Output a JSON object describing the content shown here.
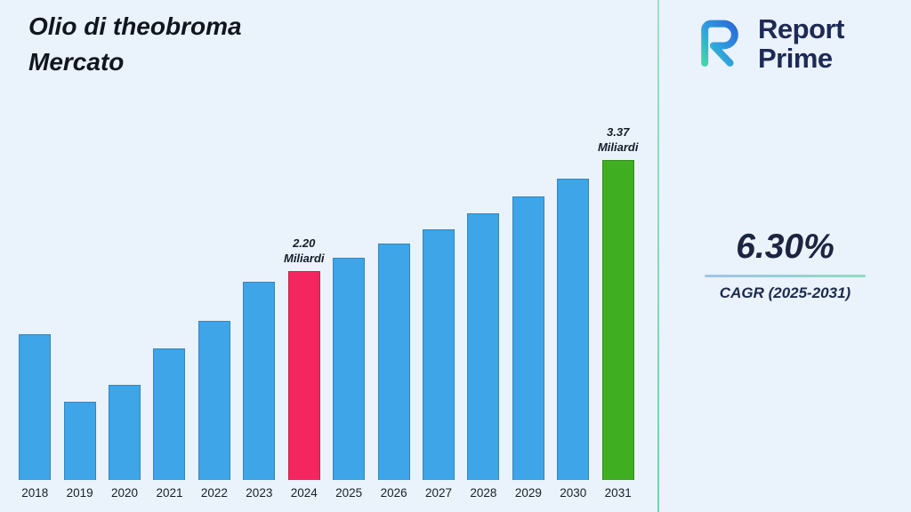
{
  "title": {
    "line1": "Olio di theobroma",
    "line2": "Mercato"
  },
  "logo": {
    "name": "Report Prime",
    "line1": "Report",
    "line2": "Prime"
  },
  "stats": {
    "cagr_value": "6.30%",
    "cagr_label": "CAGR (2025-2031)"
  },
  "chart_data": {
    "type": "bar",
    "title": "Olio di theobroma Mercato",
    "unit": "Miliardi",
    "categories": [
      "2018",
      "2019",
      "2020",
      "2021",
      "2022",
      "2023",
      "2024",
      "2025",
      "2026",
      "2027",
      "2028",
      "2029",
      "2030",
      "2031"
    ],
    "values": [
      1.54,
      0.82,
      1.0,
      1.39,
      1.68,
      2.09,
      2.2,
      2.34,
      2.49,
      2.64,
      2.81,
      2.99,
      3.17,
      3.37
    ],
    "ylim": [
      0,
      3.6
    ],
    "grid": false,
    "legend": false,
    "bar_color": "#3da5e8",
    "highlight_colors": {
      "2024": "#f5265f",
      "2031": "#3fae21"
    },
    "annotations": [
      {
        "year": "2024",
        "value": "2.20",
        "unit": "Miliardi"
      },
      {
        "year": "2031",
        "value": "3.37",
        "unit": "Miliardi"
      }
    ]
  }
}
